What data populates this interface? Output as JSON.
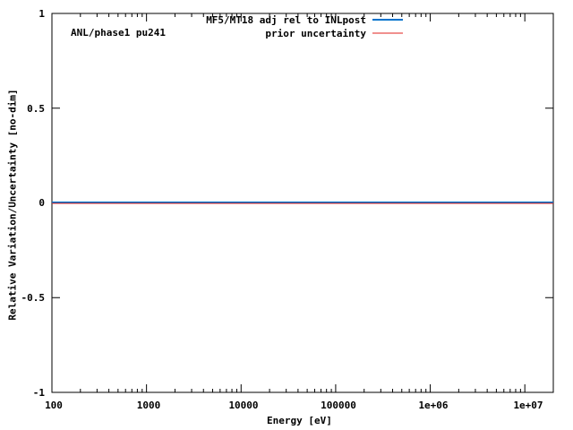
{
  "chart_data": {
    "type": "line",
    "title": "",
    "annotation": "ANL/phase1 pu241",
    "xlabel": "Energy [eV]",
    "ylabel": "Relative Variation/Uncertainty [no-dim]",
    "xscale": "log",
    "xlim": [
      100,
      20000000
    ],
    "ylim": [
      -1,
      1
    ],
    "x_tick_labels": [
      "100",
      "1000",
      "10000",
      "100000",
      "1e+06",
      "1e+07"
    ],
    "y_tick_labels": [
      "1",
      "0.5",
      "0",
      "-0.5",
      "-1"
    ],
    "grid": false,
    "legend_position": "top-right",
    "series": [
      {
        "name": "MF5/MT18 adj rel to INLpost",
        "color": "#0072cc",
        "x": [
          100,
          20000000
        ],
        "values": [
          0,
          0
        ]
      },
      {
        "name": "prior uncertainty",
        "color": "#e0201c",
        "x": [
          100,
          20000000
        ],
        "values": [
          0,
          0
        ]
      }
    ]
  },
  "legend": {
    "items": [
      {
        "label": "MF5/MT18 adj rel to INLpost",
        "color": "#0072cc"
      },
      {
        "label": "prior uncertainty",
        "color": "#e0201c"
      }
    ]
  }
}
